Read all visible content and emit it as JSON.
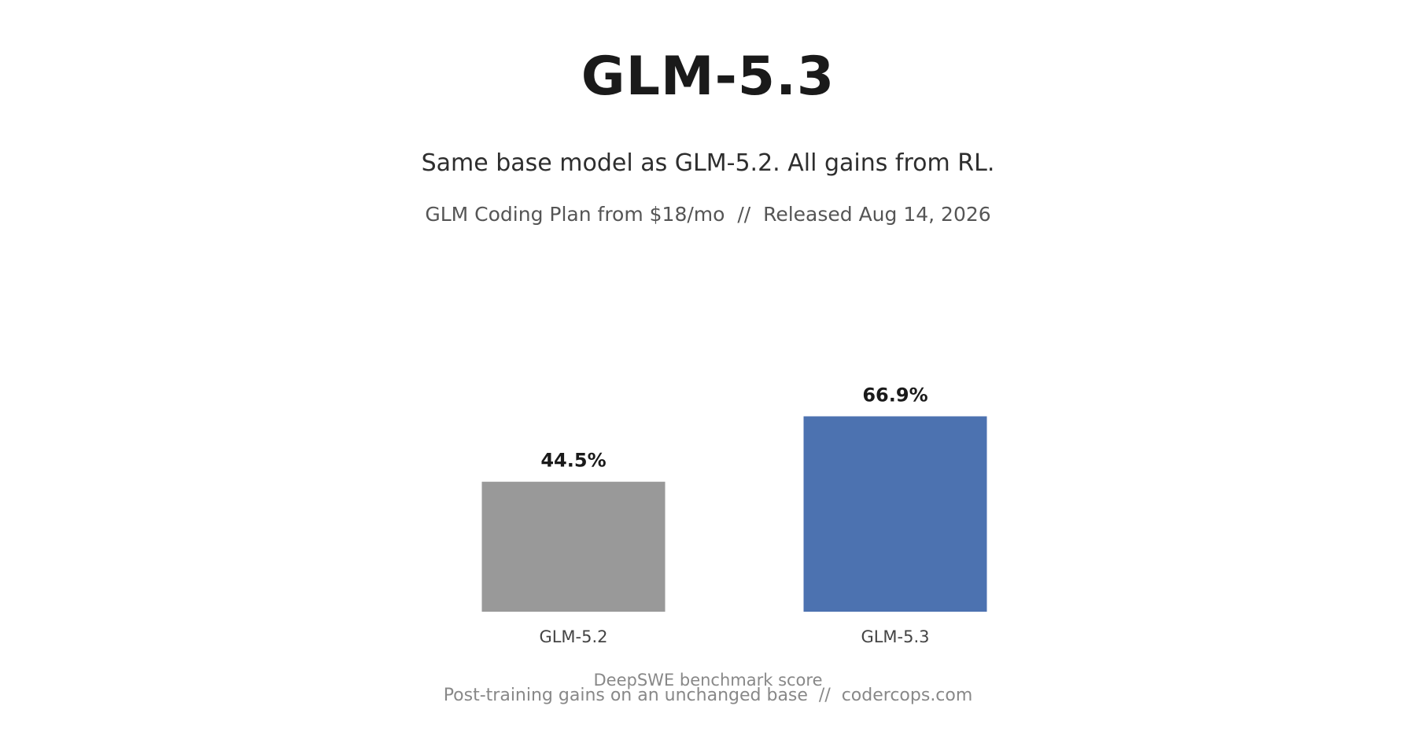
{
  "header": {
    "title": "GLM-5.3",
    "subtitle": "Same base model as GLM-5.2. All gains from RL.",
    "tagline": "GLM Coding Plan from $18/mo  //  Released Aug 14, 2026"
  },
  "footer": {
    "caption": "Post-training gains on an unchanged base  //  codercops.com"
  },
  "chart_data": {
    "type": "bar",
    "categories": [
      "GLM-5.2",
      "GLM-5.3"
    ],
    "values": [
      44.5,
      66.9
    ],
    "value_labels": [
      "44.5%",
      "66.9%"
    ],
    "bar_colors": [
      "#999999",
      "#4c72b0"
    ],
    "xlabel": "DeepSWE benchmark score",
    "ylabel": "",
    "ylim": [
      0,
      100
    ],
    "grid": false,
    "legend": "none"
  }
}
